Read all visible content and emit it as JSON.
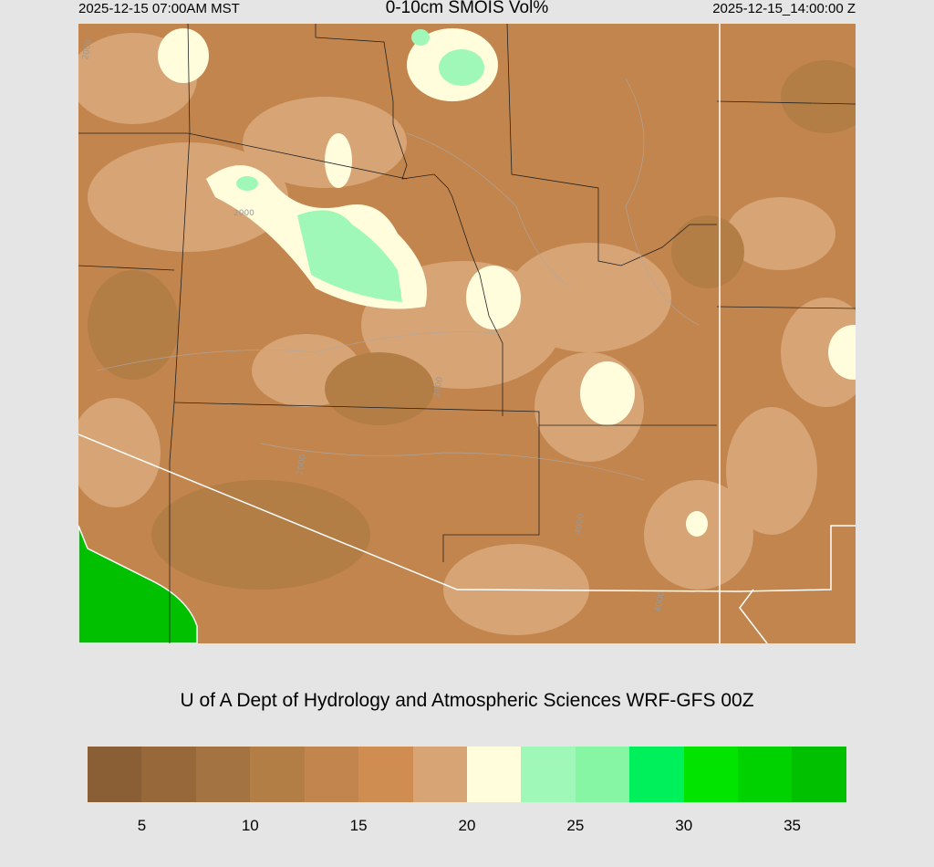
{
  "header": {
    "left": "2025-12-15 07:00AM MST",
    "title": "0-10cm SMOIS Vol%",
    "right": "2025-12-15_14:00:00 Z"
  },
  "map": {
    "contour_labels": [
      "2000",
      "2000",
      "2000",
      "2000",
      "4000",
      "4000"
    ],
    "base_color": "#c2854d"
  },
  "credit": "U of A Dept of Hydrology and Atmospheric Sciences WRF-GFS 00Z",
  "colorbar": {
    "colors": [
      "#8a5f36",
      "#96683a",
      "#a37341",
      "#b37d46",
      "#c2854d",
      "#cf8d52",
      "#d7a476",
      "#fffddc",
      "#a0f8b8",
      "#86f5a4",
      "#00f05c",
      "#00e400",
      "#00d200",
      "#00c000"
    ],
    "ticks": [
      "5",
      "10",
      "15",
      "20",
      "25",
      "30",
      "35"
    ]
  }
}
